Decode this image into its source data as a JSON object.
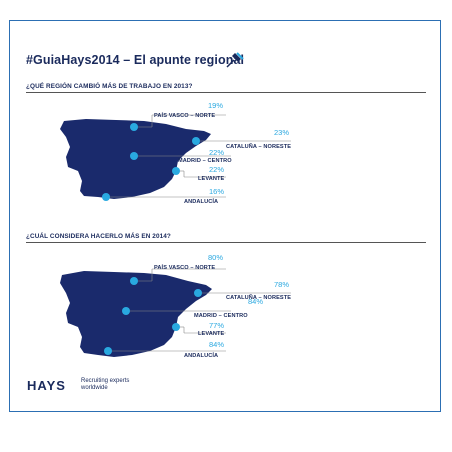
{
  "title": "#GuiaHays2014 – El apunte regional",
  "sections": [
    {
      "question": "¿QUÉ REGIÓN CAMBIÓ MÁS DE TRABAJO EN 2013?",
      "regions": [
        {
          "name": "PAÍS VASCO – NORTE",
          "value": "19%"
        },
        {
          "name": "CATALUÑA – NORESTE",
          "value": "23%"
        },
        {
          "name": "MADRID – CENTRO",
          "value": "22%"
        },
        {
          "name": "LEVANTE",
          "value": "22%"
        },
        {
          "name": "ANDALUCÍA",
          "value": "16%"
        }
      ]
    },
    {
      "question": "¿CUÁL CONSIDERA HACERLO MÁS EN 2014?",
      "regions": [
        {
          "name": "PAÍS VASCO – NORTE",
          "value": "80%"
        },
        {
          "name": "CATALUÑA – NORESTE",
          "value": "78%"
        },
        {
          "name": "MADRID – CENTRO",
          "value": "84%"
        },
        {
          "name": "LEVANTE",
          "value": "77%"
        },
        {
          "name": "ANDALUCÍA",
          "value": "84%"
        }
      ]
    }
  ],
  "footer": {
    "logo": "HAYS",
    "tagline_1": "Recruiting experts",
    "tagline_2": "worldwide"
  },
  "colors": {
    "map_fill": "#1a2a6c",
    "dot": "#29a9e0",
    "percent_text": "#2aa8e0",
    "label_text": "#1a2a5c",
    "border": "#2c6fb3"
  }
}
